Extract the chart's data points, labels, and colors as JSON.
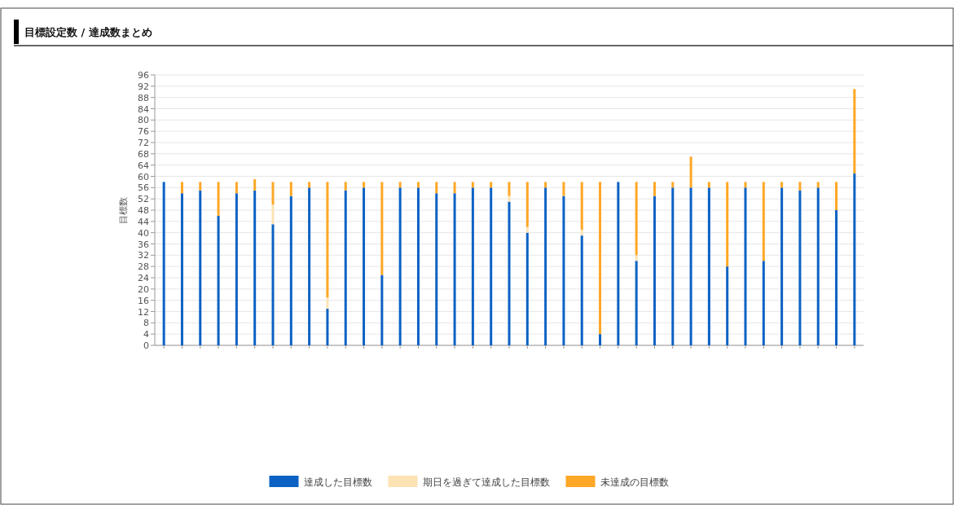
{
  "chart_data": {
    "type": "bar",
    "title": "目標設定数 / 達成数まとめ",
    "ylabel": "目標数",
    "stacked": true,
    "legend": "bottom",
    "grid": "y",
    "categories": [
      null,
      null,
      null,
      null,
      null,
      null,
      null,
      null,
      null,
      null,
      null,
      null,
      null,
      null,
      null,
      null,
      null,
      null,
      null,
      null,
      null,
      null,
      null,
      null,
      null,
      null,
      null,
      null,
      null,
      null,
      null,
      null,
      null,
      null,
      null,
      null,
      null,
      null,
      null
    ],
    "ylim": [
      0,
      96
    ],
    "yticks": [
      0,
      4,
      8,
      12,
      16,
      20,
      24,
      28,
      32,
      36,
      40,
      44,
      48,
      52,
      56,
      60,
      64,
      68,
      72,
      76,
      80,
      84,
      88,
      92,
      96
    ],
    "series": [
      {
        "name": "達成した目標数",
        "color": "#0b62c4",
        "values": [
          58,
          54,
          55,
          46,
          54,
          55,
          43,
          53,
          56,
          13,
          55,
          56,
          25,
          56,
          56,
          54,
          54,
          56,
          56,
          51,
          40,
          56,
          53,
          39,
          4,
          58,
          30,
          53,
          56,
          56,
          56,
          28,
          56,
          30,
          56,
          55,
          56,
          48,
          61
        ]
      },
      {
        "name": "期日を過ぎて達成した目標数",
        "color": "#fde3b4",
        "values": [
          0,
          0,
          0,
          0,
          0,
          0,
          7,
          0,
          0,
          4,
          0,
          0,
          0,
          0,
          0,
          0,
          0,
          0,
          0,
          2,
          2,
          0,
          0,
          2,
          0,
          0,
          2,
          0,
          0,
          0,
          0,
          0,
          0,
          0,
          0,
          0,
          0,
          0,
          0
        ]
      },
      {
        "name": "未達成の目標数",
        "color": "#ffa726",
        "values": [
          0,
          4,
          3,
          12,
          4,
          4,
          8,
          5,
          2,
          41,
          3,
          2,
          33,
          2,
          2,
          4,
          4,
          2,
          2,
          5,
          16,
          2,
          5,
          17,
          54,
          0,
          26,
          5,
          2,
          11,
          2,
          30,
          2,
          28,
          2,
          3,
          2,
          10,
          30
        ]
      }
    ]
  }
}
